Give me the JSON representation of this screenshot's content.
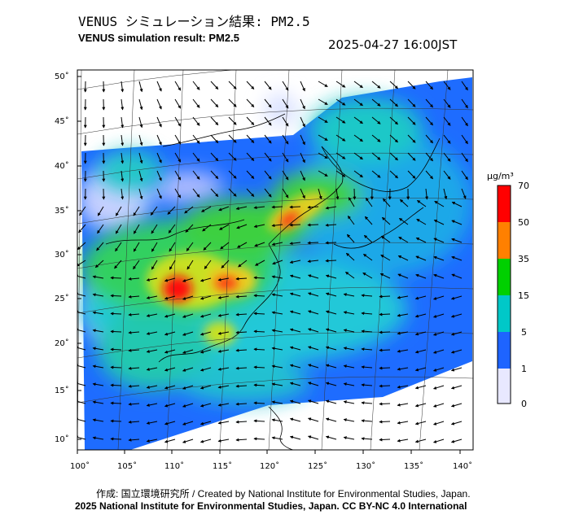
{
  "header": {
    "title_jp": "VENUS シミュレーション結果: PM2.5",
    "title_en": "VENUS simulation result: PM2.5",
    "timestamp": "2025-04-27 16:00JST"
  },
  "map": {
    "lon_ticks": [
      "100˚",
      "105˚",
      "110˚",
      "115˚",
      "120˚",
      "125˚",
      "130˚",
      "135˚",
      "140˚"
    ],
    "lat_ticks": [
      "50˚",
      "45˚",
      "40˚",
      "35˚",
      "30˚",
      "25˚",
      "20˚",
      "15˚",
      "10˚"
    ],
    "hotspots": [
      {
        "name": "south-china-core",
        "lon": 110.5,
        "lat": 26,
        "level": "70+"
      },
      {
        "name": "central-china",
        "lon": 115.5,
        "lat": 27,
        "level": "60"
      },
      {
        "name": "yellow-sea-plume",
        "lon": 122,
        "lat": 35.5,
        "level": "60"
      }
    ]
  },
  "colorbar": {
    "unit_label": "μg/m³",
    "ticks": [
      "70",
      "50",
      "35",
      "15",
      "5",
      "1",
      "0"
    ],
    "colors": [
      "#ff0000",
      "#ff8000",
      "#ffd000",
      "#00d000",
      "#00c8c8",
      "#1e64ff",
      "#d8d8ff",
      "#ffffff"
    ]
  },
  "footer": {
    "credit": "作成: 国立環境研究所 / Created by National Institute for Environmental Studies, Japan.",
    "copyright": "2025 National Institute for Environmental Studies, Japan. CC BY-NC 4.0 International"
  }
}
